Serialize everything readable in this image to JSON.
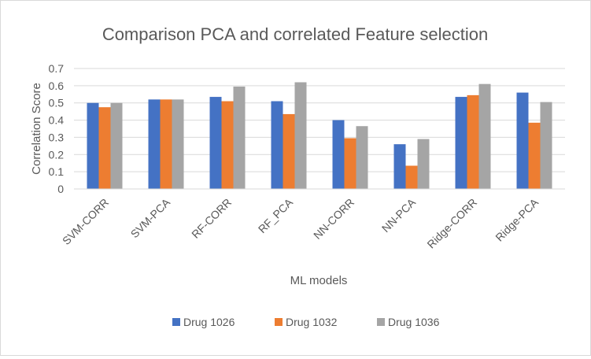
{
  "chart_data": {
    "type": "bar",
    "title": "Comparison PCA and correlated Feature selection",
    "xlabel": "ML models",
    "ylabel": "Correlation Score",
    "ylim": [
      0,
      0.7
    ],
    "yticks": [
      "0",
      "0.1",
      "0.2",
      "0.3",
      "0.4",
      "0.5",
      "0.6",
      "0.7"
    ],
    "grid": true,
    "legend_position": "bottom",
    "categories": [
      "SVM-CORR",
      "SVM-PCA",
      "RF-CORR",
      "RF_PCA",
      "NN-CORR",
      "NN-PCA",
      "Ridge-CORR",
      "Ridge-PCA"
    ],
    "series": [
      {
        "name": "Drug 1026",
        "color": "#4472c4",
        "values": [
          0.5,
          0.52,
          0.535,
          0.51,
          0.4,
          0.26,
          0.535,
          0.56
        ]
      },
      {
        "name": "Drug 1032",
        "color": "#ed7d31",
        "values": [
          0.475,
          0.52,
          0.51,
          0.435,
          0.295,
          0.135,
          0.545,
          0.385
        ]
      },
      {
        "name": "Drug 1036",
        "color": "#a5a5a5",
        "values": [
          0.5,
          0.52,
          0.595,
          0.62,
          0.365,
          0.29,
          0.61,
          0.505
        ]
      }
    ]
  }
}
